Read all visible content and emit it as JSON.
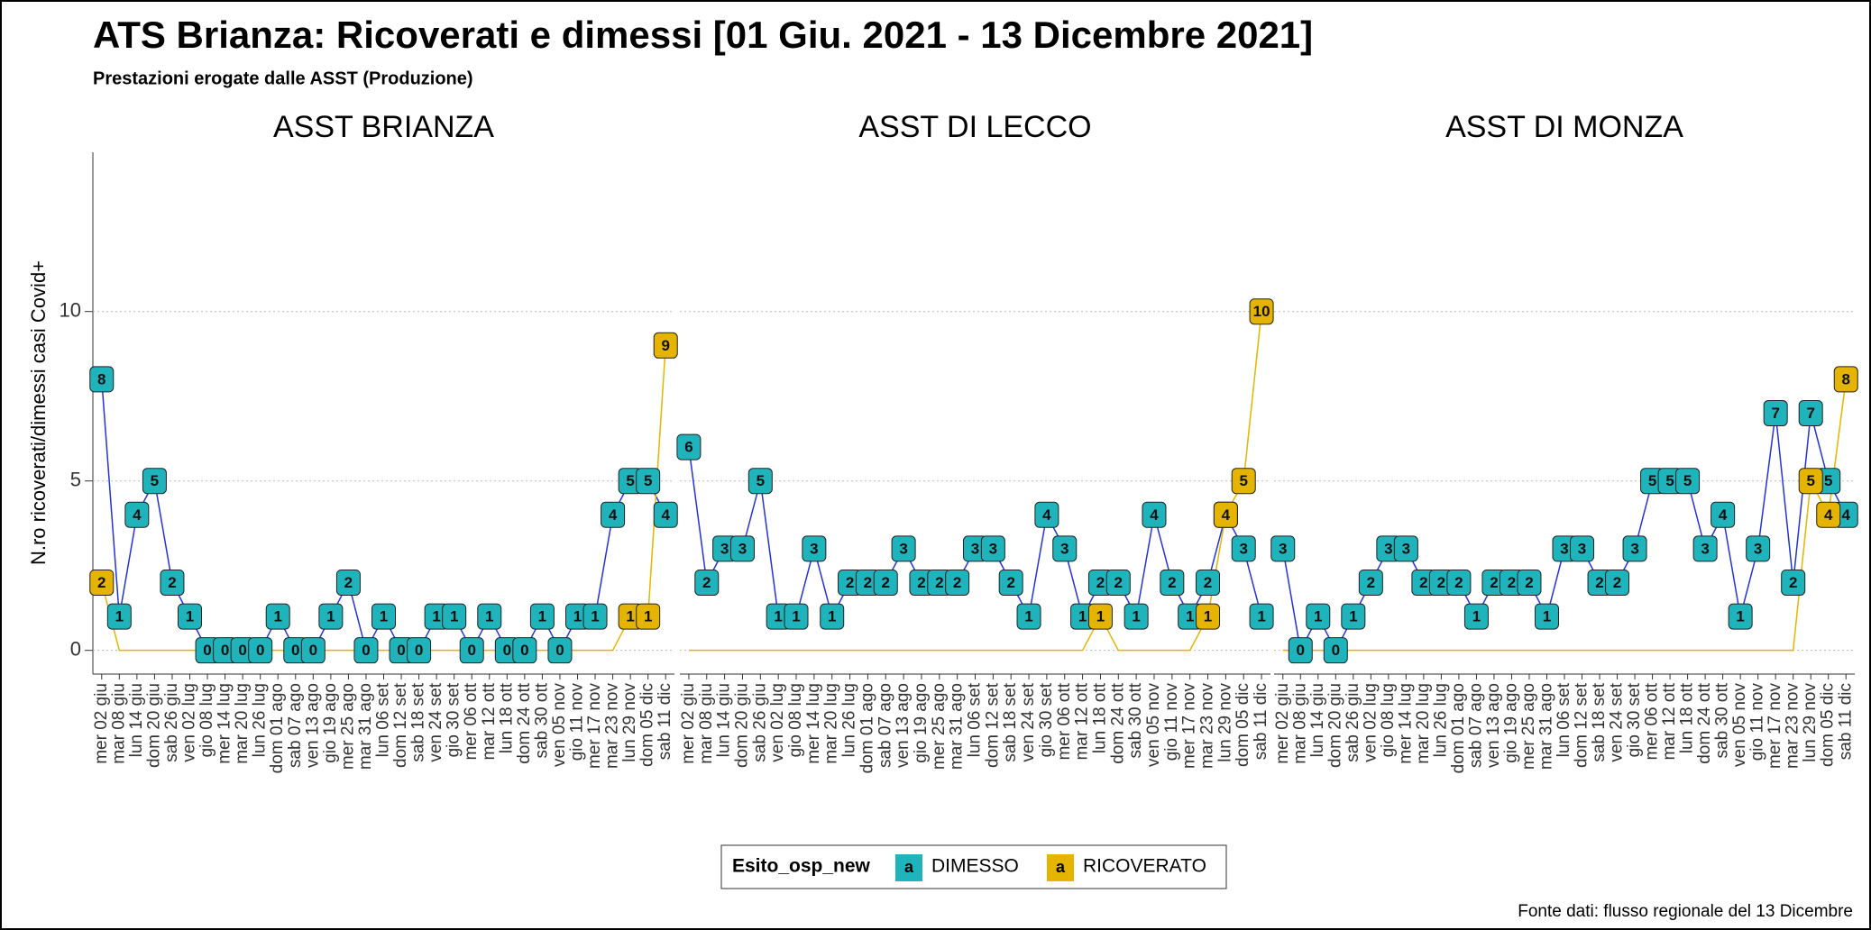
{
  "chart_data": {
    "type": "line",
    "title": "ATS Brianza: Ricoverati e dimessi [01 Giu. 2021 - 13 Dicembre 2021]",
    "subtitle": "Prestazioni erogate dalle ASST (Produzione)",
    "y_label": "N.ro ricoverati/dimessi casi Covid+",
    "source": "Fonte dati: flusso regionale del 13 Dicembre",
    "legend_title": "Esito_osp_new",
    "legend_key": "a",
    "categories": [
      "mer 02 giu",
      "mar 08 giu",
      "lun 14 giu",
      "dom 20 giu",
      "sab 26 giu",
      "ven 02 lug",
      "gio 08 lug",
      "mer 14 lug",
      "mar 20 lug",
      "lun 26 lug",
      "dom 01 ago",
      "sab 07 ago",
      "ven 13 ago",
      "gio 19 ago",
      "mer 25 ago",
      "mar 31 ago",
      "lun 06 set",
      "dom 12 set",
      "sab 18 set",
      "ven 24 set",
      "gio 30 set",
      "mer 06 ott",
      "mar 12 ott",
      "lun 18 ott",
      "dom 24 ott",
      "sab 30 ott",
      "ven 05 nov",
      "gio 11 nov",
      "mer 17 nov",
      "mar 23 nov",
      "lun 29 nov",
      "dom 05 dic",
      "sab 11 dic"
    ],
    "ylim": [
      -0.7,
      14.7
    ],
    "yticks": [
      0,
      5,
      10
    ],
    "grid": true,
    "series_names": [
      {
        "name": "DIMESSO",
        "color": "#1fb3bb"
      },
      {
        "name": "RICOVERATO",
        "color": "#e5b400"
      }
    ],
    "panels": [
      {
        "title": "ASST BRIANZA",
        "series": [
          {
            "values": [
              8,
              1,
              4,
              5,
              2,
              1,
              0,
              0,
              0,
              0,
              1,
              0,
              0,
              1,
              2,
              0,
              1,
              0,
              0,
              1,
              1,
              0,
              1,
              0,
              0,
              1,
              0,
              1,
              1,
              4,
              5,
              5,
              4
            ]
          },
          {
            "values": [
              2,
              0,
              0,
              0,
              0,
              0,
              0,
              0,
              0,
              0,
              0,
              0,
              0,
              0,
              0,
              0,
              0,
              0,
              0,
              0,
              0,
              0,
              0,
              0,
              0,
              0,
              0,
              0,
              0,
              0,
              1,
              1,
              9
            ]
          }
        ]
      },
      {
        "title": "ASST DI LECCO",
        "series": [
          {
            "values": [
              6,
              2,
              3,
              3,
              5,
              1,
              1,
              3,
              1,
              2,
              2,
              2,
              3,
              2,
              2,
              2,
              3,
              3,
              2,
              1,
              4,
              3,
              1,
              2,
              2,
              1,
              4,
              2,
              1,
              2,
              4,
              3,
              1
            ]
          },
          {
            "values": [
              0,
              0,
              0,
              0,
              0,
              0,
              0,
              0,
              0,
              0,
              0,
              0,
              0,
              0,
              0,
              0,
              0,
              0,
              0,
              0,
              0,
              0,
              0,
              1,
              0,
              0,
              0,
              0,
              0,
              1,
              4,
              5,
              10
            ]
          }
        ]
      },
      {
        "title": "ASST DI MONZA",
        "series": [
          {
            "values": [
              3,
              0,
              1,
              0,
              1,
              2,
              3,
              3,
              2,
              2,
              2,
              1,
              2,
              2,
              2,
              1,
              3,
              3,
              2,
              2,
              3,
              5,
              5,
              5,
              3,
              4,
              1,
              3,
              7,
              2,
              7,
              5,
              4
            ]
          },
          {
            "values": [
              0,
              0,
              0,
              0,
              0,
              0,
              0,
              0,
              0,
              0,
              0,
              0,
              0,
              0,
              0,
              0,
              0,
              0,
              0,
              0,
              0,
              0,
              0,
              0,
              0,
              0,
              0,
              0,
              0,
              0,
              5,
              4,
              8
            ]
          }
        ]
      }
    ]
  }
}
